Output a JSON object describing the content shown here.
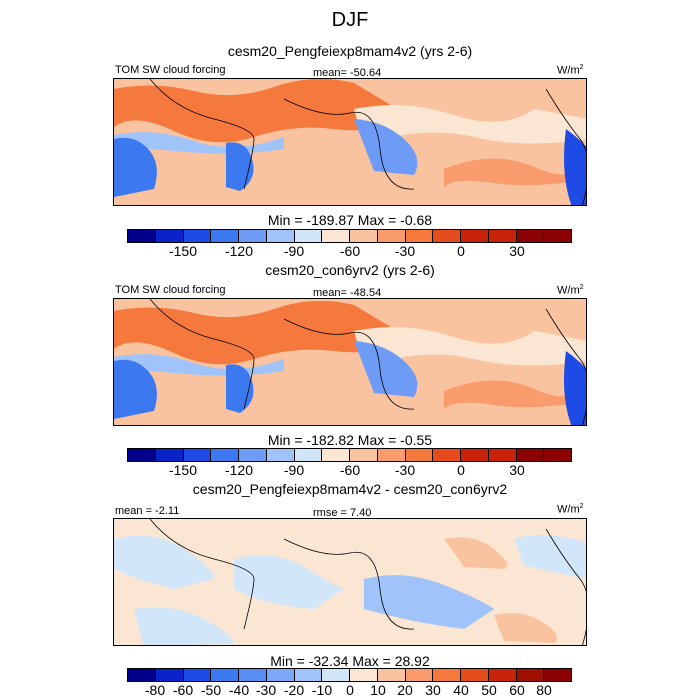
{
  "title": "DJF",
  "colors": {
    "cool": [
      "#00008b",
      "#0a23c8",
      "#1e4be6",
      "#3c78f0",
      "#6e9bf5",
      "#a0c3fa",
      "#d2e6fa"
    ],
    "warm": [
      "#fae6d2",
      "#fac3a0",
      "#fa9b6e",
      "#f5783c",
      "#e64b1e",
      "#c8230a",
      "#8b0000"
    ],
    "map_base": "#fae6d2",
    "map_light": "#d9e8fa"
  },
  "panels": [
    {
      "title": "cesm20_Pengfeiexp8mam4v2 (yrs 2-6)",
      "left_label": "TOM SW cloud forcing",
      "center_label": "mean= -50.64",
      "units_main": "W/m",
      "units_sup": "2",
      "minmax": "Min = -189.87 Max =  -0.68",
      "colorbar_ticks": [
        "-150",
        "-120",
        "-90",
        "-60",
        "-30",
        "0",
        "30"
      ]
    },
    {
      "title": "cesm20_con6yrv2 (yrs 2-6)",
      "left_label": "TOM SW cloud forcing",
      "center_label": "mean= -48.54",
      "units_main": "W/m",
      "units_sup": "2",
      "minmax": "Min = -182.82 Max =  -0.55",
      "colorbar_ticks": [
        "-150",
        "-120",
        "-90",
        "-60",
        "-30",
        "0",
        "30"
      ]
    },
    {
      "title": "cesm20_Pengfeiexp8mam4v2 - cesm20_con6yrv2",
      "left_label": "mean =  -2.11",
      "center_label": "rmse =   7.40",
      "units_main": "W/m",
      "units_sup": "2",
      "minmax": "Min = -32.34 Max =  28.92",
      "colorbar_ticks": [
        "-80",
        "-60",
        "-50",
        "-40",
        "-30",
        "-20",
        "-10",
        "0",
        "10",
        "20",
        "30",
        "40",
        "50",
        "60",
        "80"
      ]
    }
  ]
}
